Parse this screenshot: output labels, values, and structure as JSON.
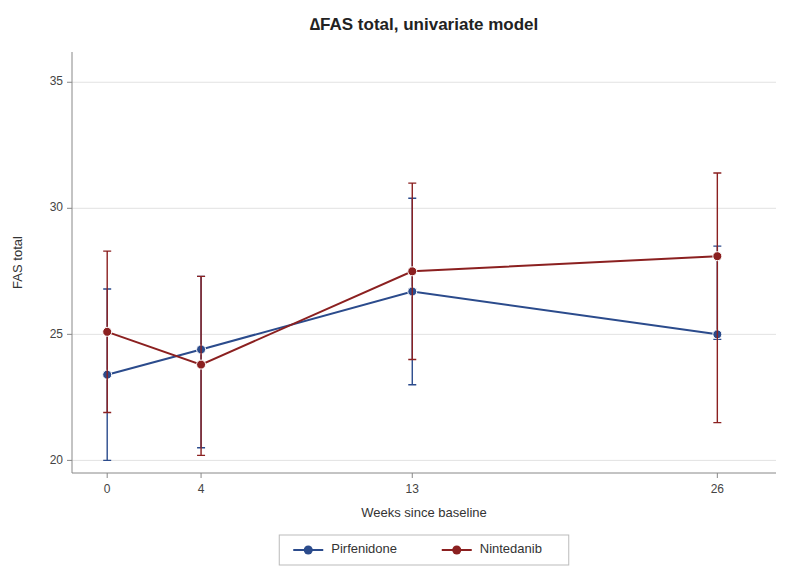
{
  "chart_data": {
    "type": "line",
    "title": "∆FAS total, univariate model",
    "x_label": "Weeks since baseline",
    "y_label": "FAS total",
    "x": [
      0,
      4,
      13,
      26
    ],
    "xlim": [
      -1.5,
      28.5
    ],
    "xticks": [
      0,
      4,
      13,
      26
    ],
    "ylim": [
      19.5,
      36.2
    ],
    "yticks": [
      20,
      25,
      30,
      35
    ],
    "grid": true,
    "legend": "bottom",
    "marker": "circle",
    "series": [
      {
        "name": "Pirfenidone",
        "color": "#2b4b8c",
        "values": [
          23.4,
          24.4,
          26.7,
          25.0
        ],
        "ci_low": [
          20.0,
          20.5,
          23.0,
          24.8
        ],
        "ci_high": [
          26.8,
          27.3,
          30.4,
          28.5
        ]
      },
      {
        "name": "Nintedanib",
        "color": "#8b2020",
        "values": [
          25.1,
          23.8,
          27.5,
          28.1
        ],
        "ci_low": [
          21.9,
          20.2,
          24.0,
          21.5
        ],
        "ci_high": [
          28.3,
          27.3,
          31.0,
          31.4
        ]
      }
    ]
  }
}
